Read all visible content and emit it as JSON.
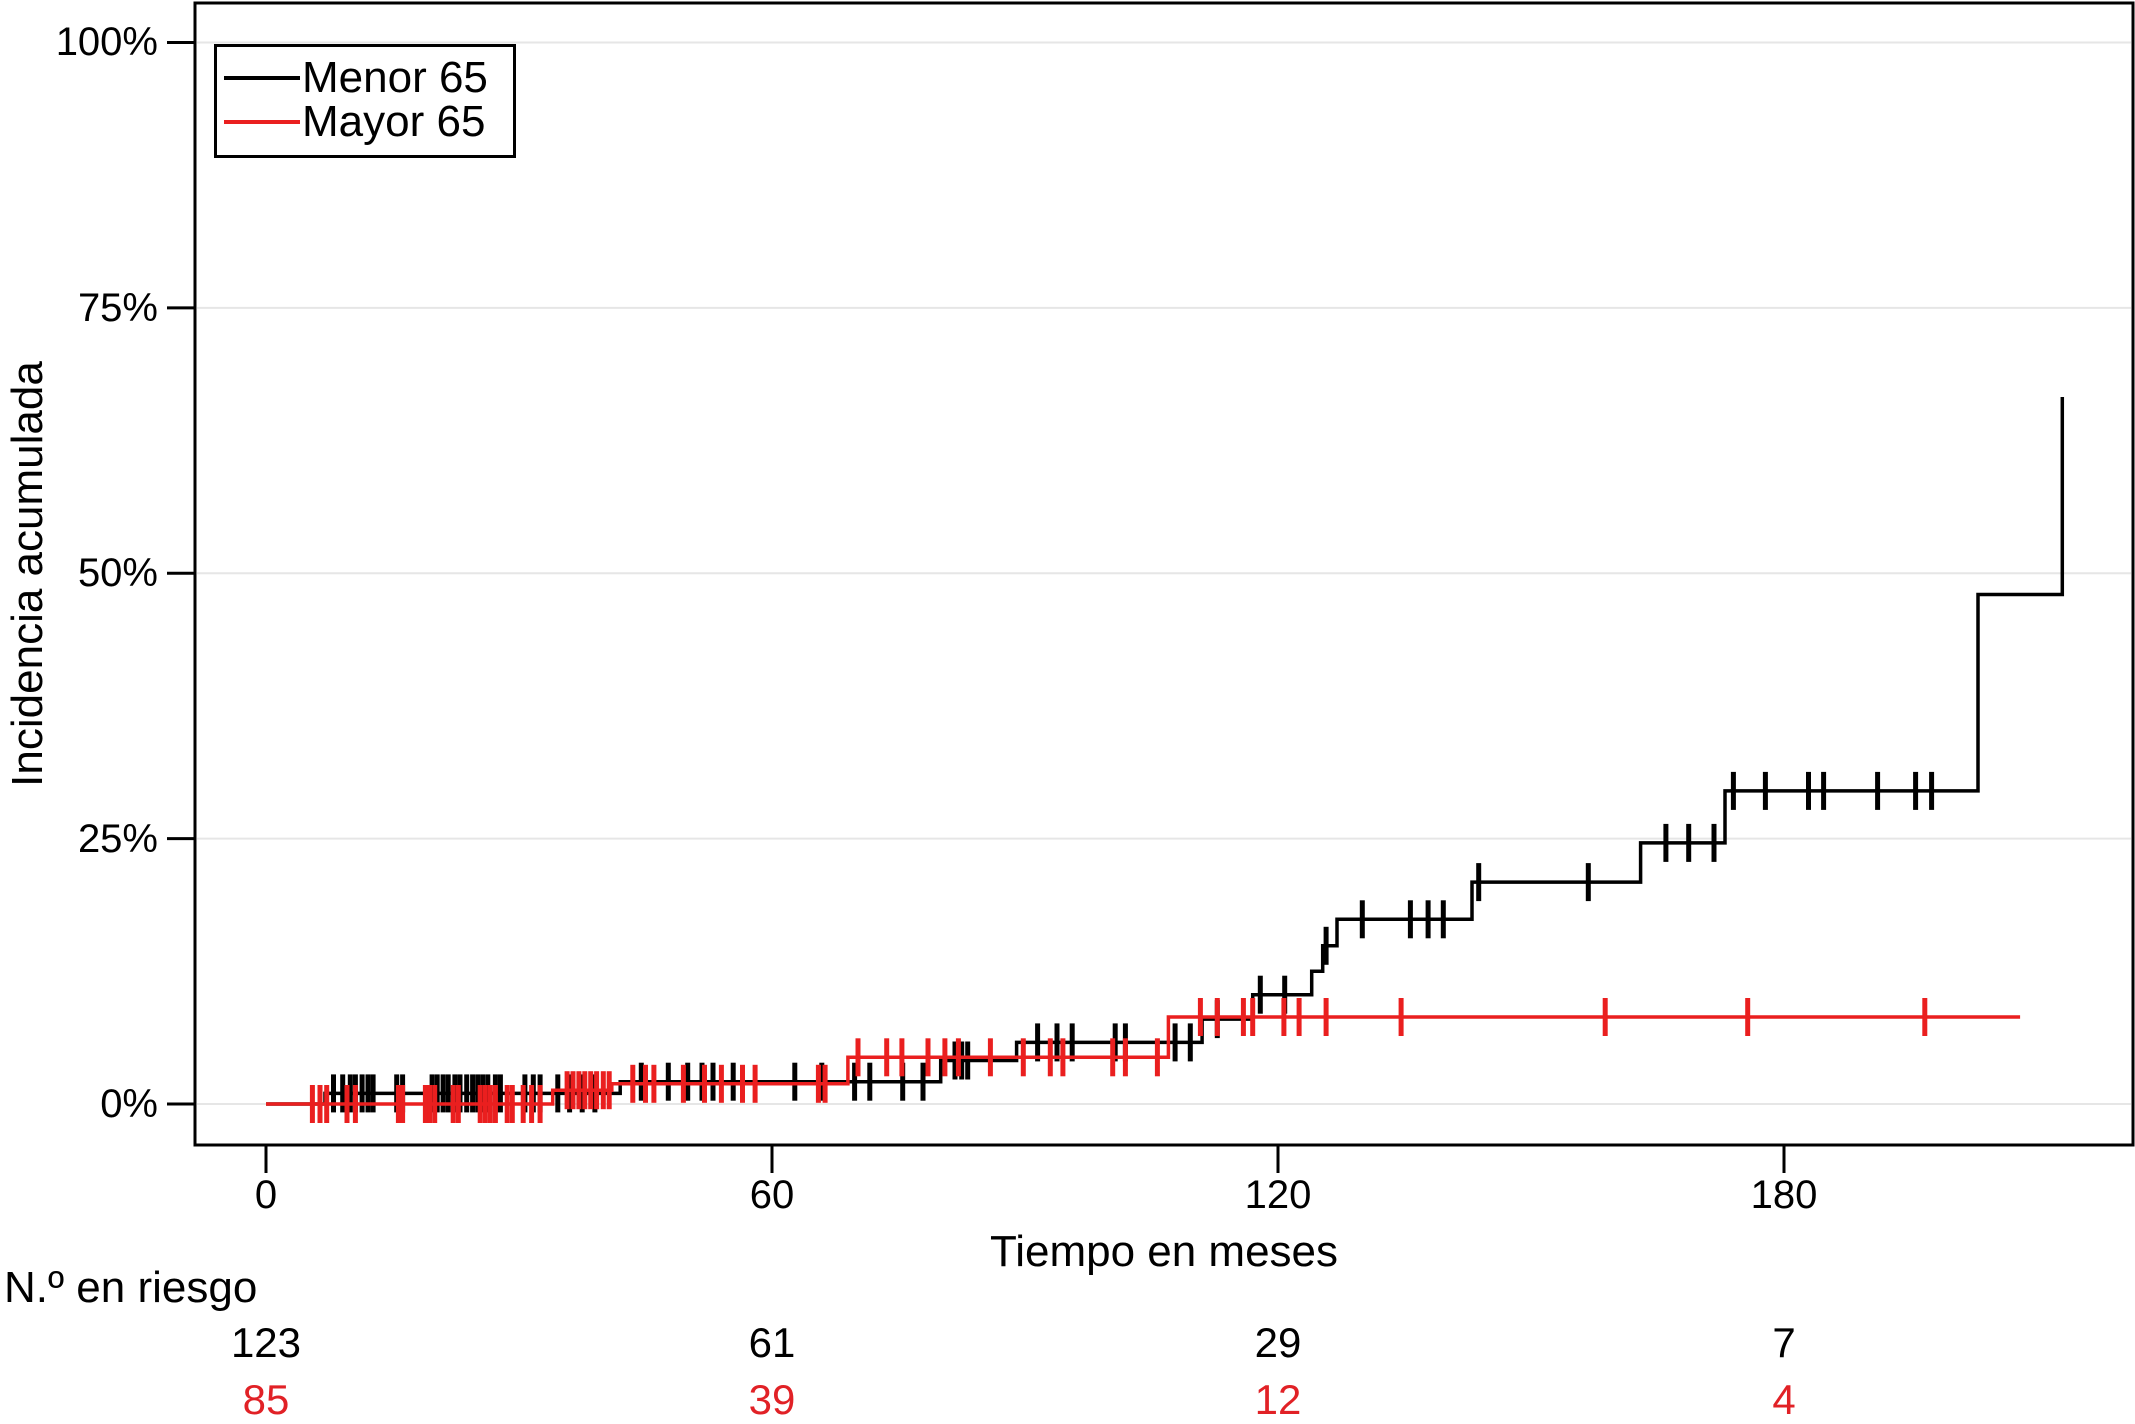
{
  "chart_data": {
    "type": "line",
    "subtype": "step-cumulative-incidence",
    "title": "",
    "xlabel": "Tiempo en meses",
    "ylabel": "Incidencia acumulada",
    "x_axis": {
      "tick_labels": [
        "0",
        "60",
        "120",
        "180"
      ],
      "tick_values": [
        0,
        60,
        120,
        180
      ],
      "range_months": [
        -8.4,
        221.4
      ],
      "unit": "meses"
    },
    "y_axis": {
      "tick_labels": [
        "0%",
        "25%",
        "50%",
        "75%",
        "100%"
      ],
      "tick_values": [
        0,
        25,
        50,
        75,
        100
      ],
      "range_percent": [
        -3.9,
        103.7
      ],
      "grid": true
    },
    "grid_color": "#e6e6e6",
    "legend": {
      "position": "top-left",
      "entries": [
        {
          "label": "Menor 65",
          "color": "#000000"
        },
        {
          "label": "Mayor 65",
          "color": "#ea1f1f"
        }
      ]
    },
    "series": [
      {
        "name": "Menor 65",
        "color": "#000000",
        "start_time": 0,
        "end_time": 213,
        "steps_time_percent": [
          [
            7,
            1.0
          ],
          [
            42,
            2.1
          ],
          [
            80,
            4.1
          ],
          [
            89,
            5.8
          ],
          [
            111,
            8.0
          ],
          [
            117,
            10.3
          ],
          [
            124,
            12.5
          ],
          [
            125.3,
            14.9
          ],
          [
            127,
            17.4
          ],
          [
            143,
            20.9
          ],
          [
            163,
            24.6
          ],
          [
            173,
            29.5
          ],
          [
            203,
            48.0
          ],
          [
            213,
            66.6
          ]
        ],
        "censor_marks_time_percent": [
          [
            8,
            1.0
          ],
          [
            9.1,
            1.0
          ],
          [
            10,
            1.0
          ],
          [
            10.6,
            1.0
          ],
          [
            11.4,
            1.0
          ],
          [
            12.1,
            1.0
          ],
          [
            12.7,
            1.0
          ],
          [
            15.5,
            1.0
          ],
          [
            16.2,
            1.0
          ],
          [
            19.7,
            1.0
          ],
          [
            20.3,
            1.0
          ],
          [
            21,
            1.0
          ],
          [
            21.6,
            1.0
          ],
          [
            22.4,
            1.0
          ],
          [
            23,
            1.0
          ],
          [
            23.8,
            1.0
          ],
          [
            24.5,
            1.0
          ],
          [
            25.1,
            1.0
          ],
          [
            25.7,
            1.0
          ],
          [
            26.3,
            1.0
          ],
          [
            27.2,
            1.0
          ],
          [
            27.8,
            1.0
          ],
          [
            30.7,
            1.0
          ],
          [
            31.7,
            1.0
          ],
          [
            32.5,
            1.0
          ],
          [
            34.6,
            1.0
          ],
          [
            36,
            1.0
          ],
          [
            37.5,
            1.0
          ],
          [
            39,
            1.0
          ],
          [
            44.5,
            2.1
          ],
          [
            47.7,
            2.1
          ],
          [
            50,
            2.1
          ],
          [
            51.7,
            2.1
          ],
          [
            53,
            2.1
          ],
          [
            55.4,
            2.1
          ],
          [
            62.7,
            2.1
          ],
          [
            65.9,
            2.1
          ],
          [
            69.8,
            2.1
          ],
          [
            71.6,
            2.1
          ],
          [
            75.5,
            2.1
          ],
          [
            77.9,
            2.1
          ],
          [
            81.7,
            4.1
          ],
          [
            82.5,
            4.1
          ],
          [
            83.2,
            4.1
          ],
          [
            91.5,
            5.8
          ],
          [
            93.8,
            5.8
          ],
          [
            95.6,
            5.8
          ],
          [
            100.7,
            5.8
          ],
          [
            101.9,
            5.8
          ],
          [
            107.8,
            5.8
          ],
          [
            109.6,
            5.8
          ],
          [
            112.8,
            8.0
          ],
          [
            117.9,
            10.3
          ],
          [
            120.8,
            10.3
          ],
          [
            125.7,
            14.9
          ],
          [
            130,
            17.4
          ],
          [
            135.7,
            17.4
          ],
          [
            137.8,
            17.4
          ],
          [
            139.6,
            17.4
          ],
          [
            143.8,
            20.9
          ],
          [
            156.8,
            20.9
          ],
          [
            166,
            24.6
          ],
          [
            168.7,
            24.6
          ],
          [
            171.7,
            24.6
          ],
          [
            174,
            29.5
          ],
          [
            177.8,
            29.5
          ],
          [
            182.9,
            29.5
          ],
          [
            184.7,
            29.5
          ],
          [
            191.1,
            29.5
          ],
          [
            195.6,
            29.5
          ],
          [
            197.5,
            29.5
          ]
        ]
      },
      {
        "name": "Mayor 65",
        "color": "#ea1f1f",
        "start_time": 0,
        "end_time": 208,
        "steps_time_percent": [
          [
            34,
            1.3
          ],
          [
            41,
            1.9
          ],
          [
            69,
            4.4
          ],
          [
            107,
            8.2
          ]
        ],
        "censor_marks_time_percent": [
          [
            5.5,
            0
          ],
          [
            6.4,
            0
          ],
          [
            7.2,
            0
          ],
          [
            9.6,
            0
          ],
          [
            10.6,
            0
          ],
          [
            15.7,
            0
          ],
          [
            16.2,
            0
          ],
          [
            18.9,
            0
          ],
          [
            19.4,
            0
          ],
          [
            20,
            0
          ],
          [
            22.2,
            0
          ],
          [
            22.8,
            0
          ],
          [
            25.4,
            0
          ],
          [
            26,
            0
          ],
          [
            26.6,
            0
          ],
          [
            27.2,
            0
          ],
          [
            28.6,
            0
          ],
          [
            29.2,
            0
          ],
          [
            30.5,
            0
          ],
          [
            31.5,
            0
          ],
          [
            32.5,
            0
          ],
          [
            35.7,
            1.3
          ],
          [
            36.4,
            1.3
          ],
          [
            37.1,
            1.3
          ],
          [
            37.8,
            1.3
          ],
          [
            38.5,
            1.3
          ],
          [
            39.2,
            1.3
          ],
          [
            40,
            1.3
          ],
          [
            40.7,
            1.3
          ],
          [
            43.5,
            1.9
          ],
          [
            45,
            1.9
          ],
          [
            46,
            1.9
          ],
          [
            49.5,
            1.9
          ],
          [
            52,
            1.9
          ],
          [
            54,
            1.9
          ],
          [
            56.5,
            1.9
          ],
          [
            58,
            1.9
          ],
          [
            65.5,
            1.9
          ],
          [
            66.3,
            1.9
          ],
          [
            70.2,
            4.4
          ],
          [
            73.6,
            4.4
          ],
          [
            75.4,
            4.4
          ],
          [
            78.5,
            4.4
          ],
          [
            80.5,
            4.4
          ],
          [
            82.1,
            4.4
          ],
          [
            85.9,
            4.4
          ],
          [
            89.8,
            4.4
          ],
          [
            93,
            4.4
          ],
          [
            94.5,
            4.4
          ],
          [
            100.4,
            4.4
          ],
          [
            101.9,
            4.4
          ],
          [
            105.7,
            4.4
          ],
          [
            110.8,
            8.2
          ],
          [
            112.8,
            8.2
          ],
          [
            115.9,
            8.2
          ],
          [
            117,
            8.2
          ],
          [
            120.7,
            8.2
          ],
          [
            122.5,
            8.2
          ],
          [
            125.7,
            8.2
          ],
          [
            134.6,
            8.2
          ],
          [
            158.8,
            8.2
          ],
          [
            175.7,
            8.2
          ],
          [
            196.7,
            8.2
          ]
        ]
      }
    ],
    "risk_table": {
      "label": "N.º en riesgo",
      "times": [
        0,
        60,
        120,
        180
      ],
      "rows": [
        {
          "name": "Menor 65",
          "color": "#000000",
          "values": [
            "123",
            "61",
            "29",
            "7"
          ]
        },
        {
          "name": "Mayor 65",
          "color": "#e12126",
          "values": [
            "85",
            "39",
            "12",
            "4"
          ]
        }
      ]
    }
  }
}
